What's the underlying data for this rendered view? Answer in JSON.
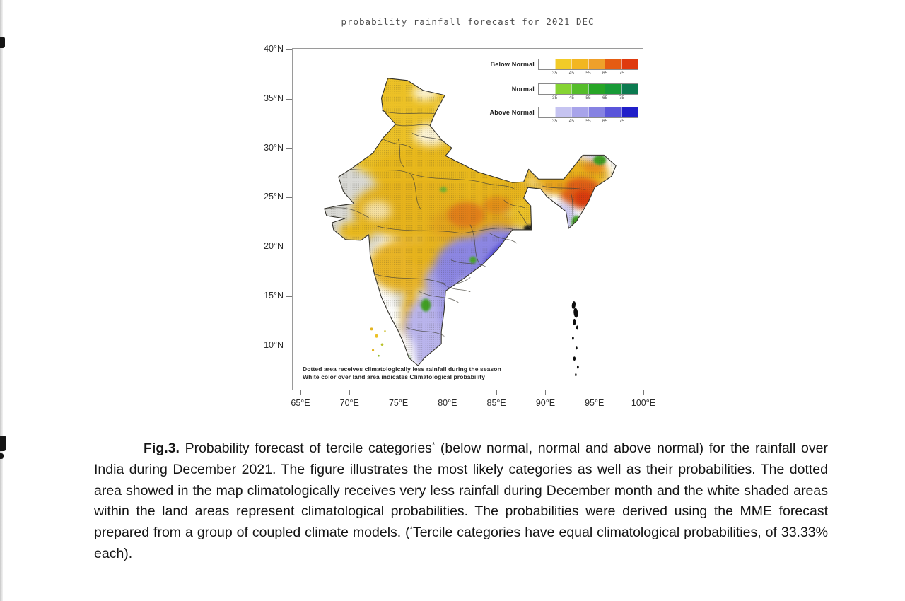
{
  "figure": {
    "title": "probability rainfall forecast for 2021 DEC",
    "map_note_line1": "Dotted area receives climatologically less rainfall during the season",
    "map_note_line2": "White color over land area indicates Climatological probability",
    "axes": {
      "lat_ticks": [
        "40°N",
        "35°N",
        "30°N",
        "25°N",
        "20°N",
        "15°N",
        "10°N"
      ],
      "lon_ticks": [
        "65°E",
        "70°E",
        "75°E",
        "80°E",
        "85°E",
        "90°E",
        "95°E",
        "100°E"
      ]
    },
    "legend": {
      "rows": [
        {
          "label": "Below Normal",
          "colors": [
            "#ffffff",
            "#f2cb28",
            "#f2b621",
            "#efa02a",
            "#e55c12",
            "#df3a0e"
          ],
          "ticks": [
            "35",
            "45",
            "55",
            "65",
            "75"
          ]
        },
        {
          "label": "Normal",
          "colors": [
            "#ffffff",
            "#86d433",
            "#55bd2a",
            "#27a526",
            "#189a37",
            "#0c7b50"
          ],
          "ticks": [
            "35",
            "45",
            "55",
            "65",
            "75"
          ]
        },
        {
          "label": "Above Normal",
          "colors": [
            "#ffffff",
            "#c6c4f1",
            "#a8a4ea",
            "#8682e2",
            "#5a55da",
            "#201fc9"
          ],
          "ticks": [
            "35",
            "45",
            "55",
            "65",
            "75"
          ]
        }
      ]
    }
  },
  "caption": {
    "fig_label": "Fig.3.",
    "part1": " Probability forecast of tercile categories",
    "star": "*",
    "part2": " (below normal, normal and above normal) for the rainfall over India during December 2021. The figure illustrates the most likely categories as well as their probabilities. The dotted area showed in the map climatologically receives very less rainfall during December month and the white shaded areas within the land areas represent climatological probabilities. The probabilities were derived using the MME forecast prepared from a group of coupled climate models. (",
    "star2": "*",
    "part3": "Tercile categories have equal climatological probabilities, of 33.33% each)."
  },
  "chart_data": {
    "type": "choropleth-map",
    "region": "India",
    "variable": "probability of rainfall tercile category",
    "period": "December 2021",
    "probability_scale_percent": [
      35,
      45,
      55,
      65,
      75
    ],
    "categories": [
      {
        "name": "Below Normal",
        "palette": [
          "#ffffff",
          "#f2cb28",
          "#f2b621",
          "#efa02a",
          "#e55c12",
          "#df3a0e"
        ],
        "dominant_areas": "north and northwest India (Jammu & Kashmir, Punjab, Rajasthan, Uttar Pradesh, Bihar), central India patches, most of the northeast (highest probabilities, red shades, over eastern Assam/Arunachal)"
      },
      {
        "name": "Normal",
        "palette": [
          "#ffffff",
          "#86d433",
          "#55bd2a",
          "#27a526",
          "#189a37",
          "#0c7b50"
        ],
        "dominant_areas": "small scattered pockets in the northeast and the southern interior"
      },
      {
        "name": "Above Normal",
        "palette": [
          "#ffffff",
          "#c6c4f1",
          "#a8a4ea",
          "#8682e2",
          "#5a55da",
          "#201fc9"
        ],
        "dominant_areas": "southeast peninsula (coastal Andhra Pradesh, Odisha coast, Telangana, Tamil Nadu, Kerala), darkest blues along the Andhra coast"
      }
    ],
    "annotations": [
      "Dotted area receives climatologically less rainfall during the season",
      "White color over land area indicates Climatological probability"
    ],
    "axis_ranges": {
      "lon_deg_E": [
        65,
        100
      ],
      "lat_deg_N": [
        5.5,
        40
      ]
    }
  }
}
